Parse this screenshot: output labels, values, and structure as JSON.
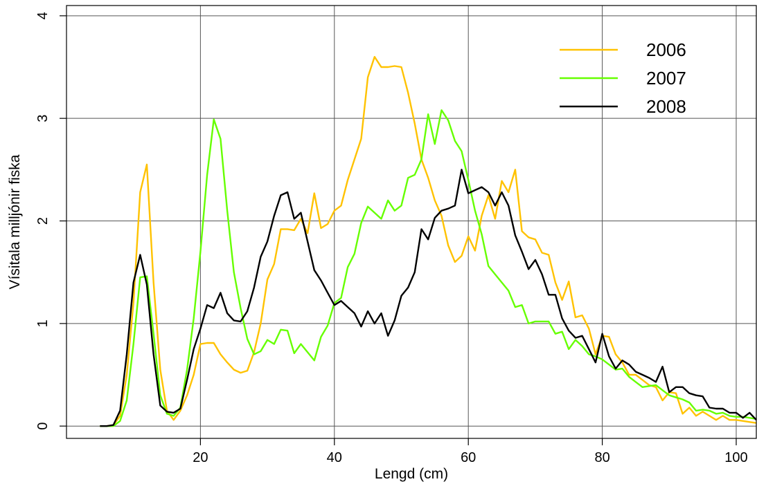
{
  "chart_data": {
    "type": "line",
    "xlabel": "Lengd (cm)",
    "ylabel": "Vísitala milljónir fiska",
    "xlim": [
      0,
      103
    ],
    "ylim": [
      -0.12,
      4.1
    ],
    "xticks": [
      20,
      40,
      60,
      80,
      100
    ],
    "yticks": [
      0,
      1,
      2,
      3,
      4
    ],
    "x_tick_labels": [
      "20",
      "40",
      "60",
      "80",
      "100"
    ],
    "y_tick_labels": [
      "0",
      "1",
      "2",
      "3",
      "4"
    ],
    "grid": true,
    "legend_position": "top-right",
    "x": [
      5,
      6,
      7,
      8,
      9,
      10,
      11,
      12,
      13,
      14,
      15,
      16,
      17,
      18,
      19,
      20,
      21,
      22,
      23,
      24,
      25,
      26,
      27,
      28,
      29,
      30,
      31,
      32,
      33,
      34,
      35,
      36,
      37,
      38,
      39,
      40,
      41,
      42,
      43,
      44,
      45,
      46,
      47,
      48,
      49,
      50,
      51,
      52,
      53,
      54,
      55,
      56,
      57,
      58,
      59,
      60,
      61,
      62,
      63,
      64,
      65,
      66,
      67,
      68,
      69,
      70,
      71,
      72,
      73,
      74,
      75,
      76,
      77,
      78,
      79,
      80,
      81,
      82,
      83,
      84,
      85,
      86,
      87,
      88,
      89,
      90,
      91,
      92,
      93,
      94,
      95,
      96,
      97,
      98,
      99,
      100,
      101,
      102,
      103
    ],
    "series": [
      {
        "name": "2006",
        "color": "#FFC200",
        "values": [
          0,
          0,
          0.01,
          0.1,
          0.5,
          1.2,
          2.28,
          2.55,
          1.4,
          0.55,
          0.15,
          0.06,
          0.15,
          0.3,
          0.5,
          0.8,
          0.81,
          0.81,
          0.7,
          0.62,
          0.55,
          0.52,
          0.54,
          0.72,
          1.0,
          1.43,
          1.58,
          1.92,
          1.92,
          1.91,
          2.02,
          1.88,
          2.27,
          1.93,
          1.97,
          2.1,
          2.15,
          2.4,
          2.6,
          2.8,
          3.4,
          3.6,
          3.5,
          3.5,
          3.51,
          3.5,
          3.25,
          2.95,
          2.6,
          2.42,
          2.2,
          2.05,
          1.76,
          1.6,
          1.66,
          1.85,
          1.71,
          2.05,
          2.25,
          2.02,
          2.39,
          2.28,
          2.5,
          1.9,
          1.84,
          1.82,
          1.69,
          1.67,
          1.4,
          1.23,
          1.41,
          1.06,
          1.08,
          0.95,
          0.7,
          0.88,
          0.87,
          0.7,
          0.62,
          0.5,
          0.5,
          0.45,
          0.4,
          0.38,
          0.25,
          0.33,
          0.32,
          0.12,
          0.18,
          0.1,
          0.14,
          0.1,
          0.06,
          0.1,
          0.06,
          0.06,
          0.05,
          0.04,
          0.03
        ]
      },
      {
        "name": "2007",
        "color": "#66FF00",
        "values": [
          0,
          0,
          0,
          0.05,
          0.25,
          0.8,
          1.45,
          1.46,
          0.9,
          0.3,
          0.12,
          0.1,
          0.18,
          0.55,
          1.05,
          1.7,
          2.45,
          2.99,
          2.8,
          2.1,
          1.5,
          1.15,
          0.85,
          0.7,
          0.73,
          0.84,
          0.8,
          0.94,
          0.93,
          0.71,
          0.8,
          0.72,
          0.64,
          0.87,
          0.98,
          1.2,
          1.25,
          1.55,
          1.68,
          1.98,
          2.14,
          2.08,
          2.02,
          2.2,
          2.1,
          2.15,
          2.42,
          2.45,
          2.6,
          3.04,
          2.75,
          3.08,
          2.98,
          2.78,
          2.68,
          2.4,
          2.1,
          1.87,
          1.56,
          1.48,
          1.4,
          1.32,
          1.16,
          1.18,
          1.0,
          1.02,
          1.02,
          1.02,
          0.9,
          0.92,
          0.75,
          0.84,
          0.78,
          0.7,
          0.68,
          0.65,
          0.6,
          0.55,
          0.56,
          0.48,
          0.43,
          0.38,
          0.39,
          0.4,
          0.35,
          0.3,
          0.28,
          0.26,
          0.23,
          0.15,
          0.16,
          0.15,
          0.12,
          0.13,
          0.1,
          0.09,
          0.09,
          0.08,
          0.07
        ]
      },
      {
        "name": "2008",
        "color": "#000000",
        "values": [
          0,
          0,
          0.01,
          0.15,
          0.7,
          1.4,
          1.67,
          1.38,
          0.7,
          0.2,
          0.14,
          0.13,
          0.17,
          0.45,
          0.75,
          0.95,
          1.18,
          1.15,
          1.3,
          1.1,
          1.03,
          1.02,
          1.12,
          1.35,
          1.65,
          1.8,
          2.05,
          2.25,
          2.28,
          2.02,
          2.08,
          1.8,
          1.52,
          1.42,
          1.3,
          1.18,
          1.22,
          1.16,
          1.1,
          0.97,
          1.12,
          1.0,
          1.1,
          0.88,
          1.03,
          1.27,
          1.35,
          1.5,
          1.92,
          1.82,
          2.03,
          2.1,
          2.12,
          2.15,
          2.5,
          2.27,
          2.3,
          2.33,
          2.28,
          2.15,
          2.28,
          2.15,
          1.86,
          1.7,
          1.53,
          1.62,
          1.48,
          1.28,
          1.28,
          1.05,
          0.93,
          0.86,
          0.88,
          0.75,
          0.62,
          0.9,
          0.68,
          0.56,
          0.64,
          0.6,
          0.53,
          0.5,
          0.47,
          0.43,
          0.58,
          0.33,
          0.38,
          0.38,
          0.32,
          0.3,
          0.29,
          0.18,
          0.17,
          0.17,
          0.13,
          0.13,
          0.08,
          0.13,
          0.06
        ]
      }
    ]
  }
}
